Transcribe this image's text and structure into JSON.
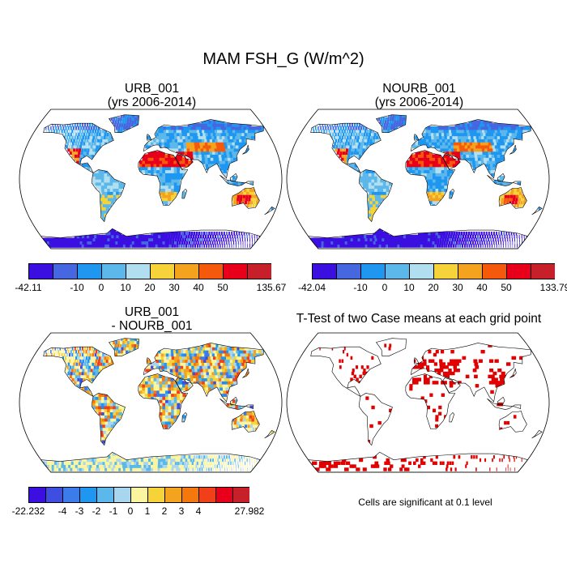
{
  "title": "MAM FSH_G (W/m^2)",
  "panels": {
    "p1": {
      "title1": "URB_001",
      "title2": "(yrs 2006-2014)"
    },
    "p2": {
      "title1": "NOURB_001",
      "title2": "(yrs 2006-2014)"
    },
    "p3": {
      "title1": "URB_001",
      "title2": "- NOURB_001"
    },
    "p4": {
      "title1": "T-Test of two Case means at each grid point"
    }
  },
  "colorbars": {
    "cb1": {
      "colors": [
        "#3b0fe0",
        "#4767e0",
        "#1f97f0",
        "#5cb7ea",
        "#b2dff0",
        "#f6d338",
        "#f4a31e",
        "#f55a0c",
        "#e8001a",
        "#c8202a"
      ],
      "labels": [
        "-42.11",
        "-10",
        "0",
        "10",
        "20",
        "30",
        "40",
        "50",
        "135.67"
      ]
    },
    "cb2": {
      "colors": [
        "#3b0fe0",
        "#4767e0",
        "#1f97f0",
        "#5cb7ea",
        "#b2dff0",
        "#f6d338",
        "#f4a31e",
        "#f55a0c",
        "#e8001a",
        "#c8202a"
      ],
      "labels": [
        "-42.04",
        "-10",
        "0",
        "10",
        "20",
        "30",
        "40",
        "50",
        "133.79"
      ]
    },
    "cb3": {
      "colors": [
        "#3b0fe0",
        "#3d4ee0",
        "#3c7bea",
        "#1f97f0",
        "#5cb7ea",
        "#a8d6ee",
        "#fbf5a0",
        "#f6d338",
        "#f4a31e",
        "#f5780c",
        "#f0401a",
        "#e8001a",
        "#c8202a"
      ],
      "labels": [
        "-22.232",
        "-4",
        "-3",
        "-2",
        "-1",
        "0",
        "1",
        "2",
        "3",
        "4",
        "27.982"
      ]
    }
  },
  "significance_note": "Cells are significant at 0.1 level",
  "palette": {
    "ocean": "#ffffff",
    "coast": "#000000",
    "significant": "#e00000"
  }
}
